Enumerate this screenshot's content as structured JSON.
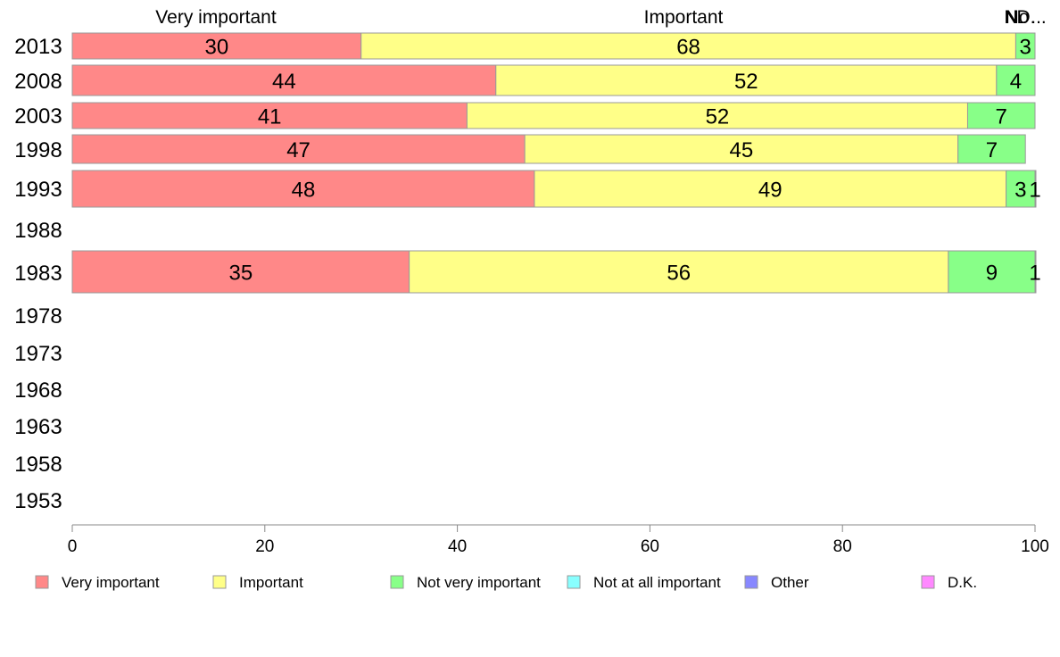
{
  "chart_data": {
    "type": "bar",
    "orientation": "horizontal",
    "stacked": true,
    "xlim": [
      0,
      100
    ],
    "x_ticks": [
      "0",
      "20",
      "40",
      "60",
      "80",
      "100"
    ],
    "categories": [
      "2013",
      "2008",
      "2003",
      "1998",
      "1993",
      "1988",
      "1983",
      "1978",
      "1973",
      "1968",
      "1963",
      "1958",
      "1953"
    ],
    "series": [
      {
        "name": "Very important",
        "color": "#ff8888",
        "values": [
          30,
          44,
          41,
          47,
          48,
          null,
          35,
          null,
          null,
          null,
          null,
          null,
          null
        ],
        "labels": [
          "30",
          "44",
          "41",
          "47",
          "48",
          "",
          "35",
          "",
          "",
          "",
          "",
          "",
          ""
        ]
      },
      {
        "name": "Important",
        "color": "#ffff88",
        "values": [
          68,
          52,
          52,
          45,
          49,
          null,
          56,
          null,
          null,
          null,
          null,
          null,
          null
        ],
        "labels": [
          "68",
          "52",
          "52",
          "45",
          "49",
          "",
          "56",
          "",
          "",
          "",
          "",
          "",
          ""
        ]
      },
      {
        "name": "Not very important",
        "color": "#88ff88",
        "values": [
          3,
          4,
          7,
          7,
          3,
          null,
          9,
          null,
          null,
          null,
          null,
          null,
          null
        ],
        "labels": [
          "3",
          "4",
          "7",
          "7",
          "3",
          "",
          "9",
          "",
          "",
          "",
          "",
          "",
          ""
        ]
      },
      {
        "name": "Not at all important",
        "color": "#88ffff",
        "values": [
          0,
          0,
          0,
          0,
          1,
          null,
          0,
          null,
          null,
          null,
          null,
          null,
          null
        ],
        "labels": [
          "",
          "",
          "",
          "",
          "1",
          "",
          "",
          "",
          "",
          "",
          "",
          "",
          ""
        ]
      },
      {
        "name": "Other",
        "color": "#8888ff",
        "values": [
          0,
          0,
          0,
          0,
          0,
          null,
          0,
          null,
          null,
          null,
          null,
          null,
          null
        ],
        "labels": [
          "",
          "",
          "",
          "",
          "",
          "",
          "",
          "",
          "",
          "",
          "",
          "",
          ""
        ]
      },
      {
        "name": "D.K.",
        "color": "#ff88ff",
        "values": [
          0,
          0,
          0,
          0,
          0,
          null,
          1,
          null,
          null,
          null,
          null,
          null,
          null
        ],
        "labels": [
          "",
          "",
          "",
          "",
          "",
          "",
          "1",
          "",
          "",
          "",
          "",
          "",
          ""
        ]
      }
    ],
    "top_labels": [
      "Very important",
      "Important",
      "No",
      "N",
      "D.",
      "..."
    ],
    "legend_position": "bottom",
    "grid": false
  }
}
